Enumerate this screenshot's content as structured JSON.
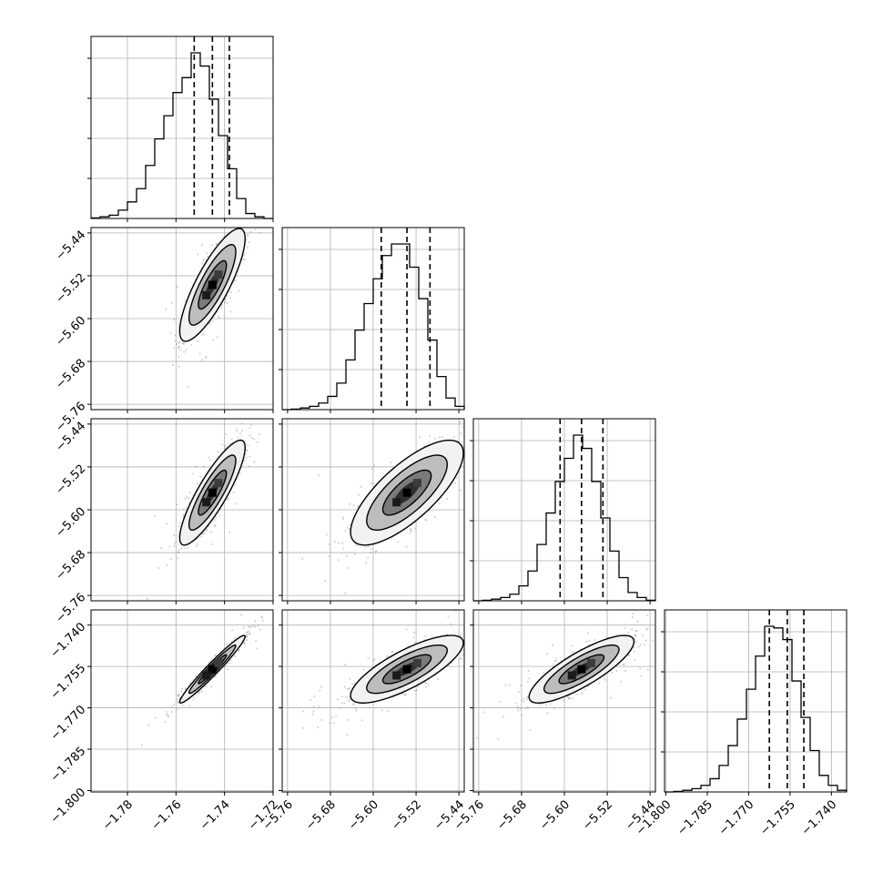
{
  "chart_data": {
    "type": "corner",
    "title": "",
    "grid": true,
    "parameters": [
      {
        "ticks": [
          -1.78,
          -1.76,
          -1.74,
          -1.72
        ],
        "tick_labels": [
          "−1.78",
          "−1.76",
          "−1.74",
          "−1.72"
        ],
        "range": [
          -1.795,
          -1.72
        ],
        "quantiles": [
          -1.7525,
          -1.745,
          -1.738
        ]
      },
      {
        "ticks": [
          -5.76,
          -5.68,
          -5.6,
          -5.52,
          -5.44
        ],
        "tick_labels": [
          "−5.76",
          "−5.68",
          "−5.60",
          "−5.52",
          "−5.44"
        ],
        "range": [
          -5.77,
          -5.43
        ],
        "quantiles": [
          -5.585,
          -5.537,
          -5.494
        ]
      },
      {
        "ticks": [
          -5.76,
          -5.68,
          -5.6,
          -5.52,
          -5.44
        ],
        "tick_labels": [
          "−5.76",
          "−5.68",
          "−5.60",
          "−5.52",
          "−5.44"
        ],
        "range": [
          -5.77,
          -5.43
        ],
        "quantiles": [
          -5.608,
          -5.568,
          -5.528
        ]
      },
      {
        "ticks": [
          -1.8,
          -1.785,
          -1.77,
          -1.755,
          -1.74
        ],
        "tick_labels": [
          "−1.800",
          "−1.785",
          "−1.770",
          "−1.755",
          "−1.740"
        ],
        "range": [
          -1.8005,
          -1.7345
        ],
        "quantiles": [
          -1.7625,
          -1.756,
          -1.75
        ]
      }
    ],
    "histograms": [
      {
        "counts": [
          0.3,
          1,
          2,
          5,
          10,
          18,
          32,
          48,
          62,
          76,
          85,
          100,
          92,
          72,
          50,
          30,
          12,
          3,
          1,
          0
        ]
      },
      {
        "counts": [
          0,
          0.3,
          1,
          2,
          4,
          8,
          16,
          30,
          48,
          64,
          79,
          93,
          100,
          100,
          86,
          67,
          42,
          20,
          7,
          2
        ]
      },
      {
        "counts": [
          0,
          0.3,
          1,
          2,
          4,
          9,
          18,
          34,
          53,
          72,
          86,
          100,
          92,
          72,
          50,
          30,
          14,
          5,
          2,
          0.3
        ]
      },
      {
        "counts": [
          0,
          0.3,
          1,
          2,
          4,
          8,
          16,
          28,
          44,
          62,
          82,
          100,
          99,
          92,
          67,
          45,
          25,
          10,
          4,
          1
        ]
      }
    ],
    "pairs": [
      {
        "row": 1,
        "col": 0,
        "center": [
          -1.745,
          -5.537
        ],
        "sd": [
          0.0055,
          0.043
        ],
        "rho": 0.82
      },
      {
        "row": 2,
        "col": 0,
        "center": [
          -1.745,
          -5.568
        ],
        "sd": [
          0.0055,
          0.04
        ],
        "rho": 0.86
      },
      {
        "row": 2,
        "col": 1,
        "center": [
          -5.537,
          -5.568
        ],
        "sd": [
          0.043,
          0.04
        ],
        "rho": 0.75
      },
      {
        "row": 3,
        "col": 0,
        "center": [
          -1.745,
          -1.756
        ],
        "sd": [
          0.0055,
          0.005
        ],
        "rho": 0.97
      },
      {
        "row": 3,
        "col": 1,
        "center": [
          -5.537,
          -1.756
        ],
        "sd": [
          0.043,
          0.005
        ],
        "rho": 0.78
      },
      {
        "row": 3,
        "col": 2,
        "center": [
          -5.568,
          -1.756
        ],
        "sd": [
          0.04,
          0.005
        ],
        "rho": 0.82
      }
    ]
  }
}
